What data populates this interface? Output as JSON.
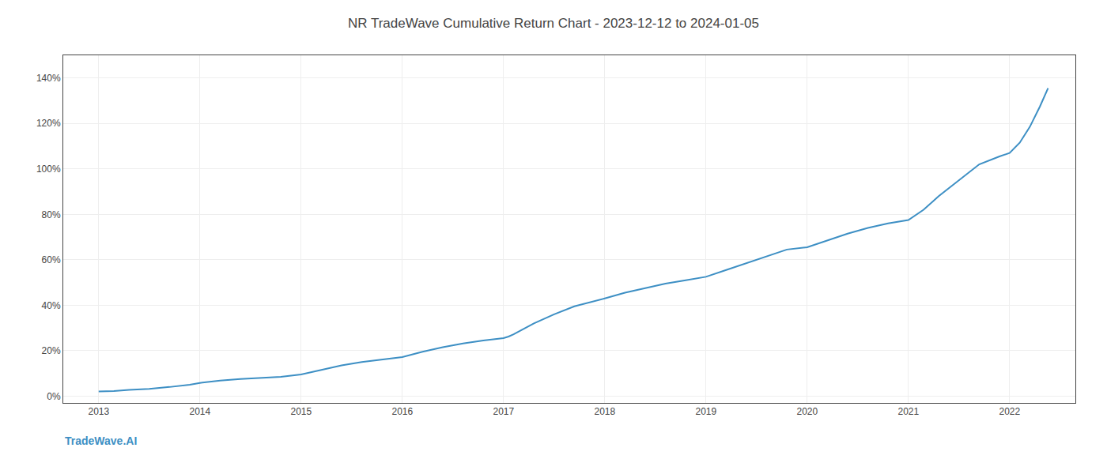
{
  "chart_data": {
    "type": "line",
    "title": "NR TradeWave Cumulative Return Chart - 2023-12-12 to 2024-01-05",
    "annotations": [
      "TradeWave.AI"
    ],
    "color": "#3d8fc4",
    "x": [
      2013.0,
      2013.15,
      2013.3,
      2013.5,
      2013.7,
      2013.9,
      2014.0,
      2014.2,
      2014.4,
      2014.6,
      2014.8,
      2015.0,
      2015.2,
      2015.4,
      2015.6,
      2015.8,
      2016.0,
      2016.2,
      2016.4,
      2016.6,
      2016.8,
      2017.0,
      2017.05,
      2017.1,
      2017.2,
      2017.3,
      2017.5,
      2017.7,
      2018.0,
      2018.2,
      2018.4,
      2018.6,
      2018.8,
      2019.0,
      2019.2,
      2019.4,
      2019.6,
      2019.8,
      2020.0,
      2020.2,
      2020.4,
      2020.6,
      2020.8,
      2021.0,
      2021.15,
      2021.3,
      2021.5,
      2021.7,
      2021.9,
      2022.0,
      2022.1,
      2022.2,
      2022.3,
      2022.38
    ],
    "values": [
      0.02,
      0.022,
      0.027,
      0.032,
      0.04,
      0.05,
      0.058,
      0.068,
      0.075,
      0.08,
      0.085,
      0.095,
      0.115,
      0.135,
      0.15,
      0.16,
      0.172,
      0.195,
      0.215,
      0.232,
      0.245,
      0.255,
      0.262,
      0.272,
      0.295,
      0.32,
      0.36,
      0.395,
      0.43,
      0.455,
      0.475,
      0.495,
      0.51,
      0.525,
      0.555,
      0.585,
      0.615,
      0.645,
      0.655,
      0.685,
      0.715,
      0.74,
      0.76,
      0.775,
      0.82,
      0.88,
      0.95,
      1.02,
      1.055,
      1.07,
      1.115,
      1.185,
      1.275,
      1.355
    ],
    "xlim": [
      2012.65,
      2022.65
    ],
    "xticks": [
      2013,
      2014,
      2015,
      2016,
      2017,
      2018,
      2019,
      2020,
      2021,
      2022
    ],
    "ylim": [
      -0.03,
      1.5
    ],
    "yticks": [
      {
        "value": 0.0,
        "label": "0%"
      },
      {
        "value": 0.2,
        "label": "20%"
      },
      {
        "value": 0.4,
        "label": "40%"
      },
      {
        "value": 0.6,
        "label": "60%"
      },
      {
        "value": 0.8,
        "label": "80%"
      },
      {
        "value": 1.0,
        "label": "100%"
      },
      {
        "value": 1.2,
        "label": "120%"
      },
      {
        "value": 1.4,
        "label": "140%"
      }
    ],
    "grid": true
  }
}
